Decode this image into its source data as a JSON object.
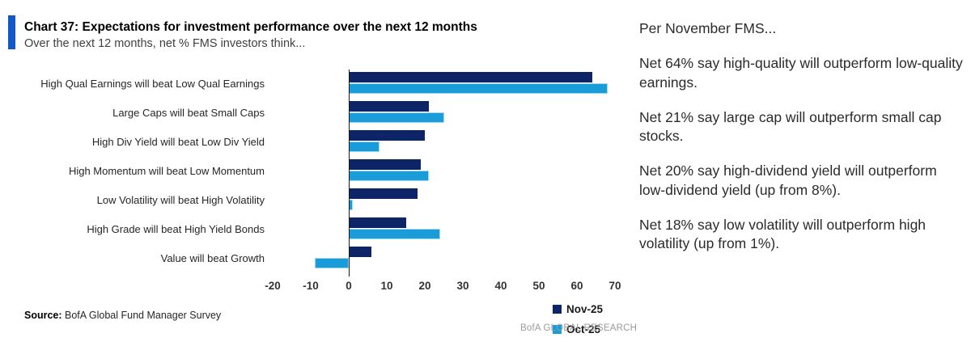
{
  "header": {
    "title": "Chart 37: Expectations for investment performance over the next 12 months",
    "subtitle": "Over the next 12 months, net % FMS investors think...",
    "accent_color": "#1159c8"
  },
  "chart_data": {
    "type": "bar",
    "orientation": "horizontal",
    "categories": [
      "High Qual Earnings will beat Low Qual Earnings",
      "Large Caps will beat Small Caps",
      "High Div Yield will beat Low Div Yield",
      "High Momentum will beat Low Momentum",
      "Low Volatility will beat High Volatility",
      "High Grade will beat High Yield Bonds",
      "Value will beat Growth"
    ],
    "series": [
      {
        "name": "Nov-25",
        "color": "#0d2566",
        "values": [
          64,
          21,
          20,
          19,
          18,
          15,
          6
        ]
      },
      {
        "name": "Oct-25",
        "color": "#1a9cd8",
        "values": [
          68,
          25,
          8,
          21,
          1,
          24,
          -9
        ]
      }
    ],
    "xlim": [
      -20,
      70
    ],
    "x_ticks": [
      -20,
      -10,
      0,
      10,
      20,
      30,
      40,
      50,
      60,
      70
    ],
    "grid": false,
    "legend_position": "right-middle",
    "title": "Chart 37: Expectations for investment performance over the next 12 months",
    "xlabel": "net % FMS investors",
    "ylabel": ""
  },
  "commentary": {
    "paragraphs": [
      "Per November FMS...",
      "Net 64% say high-quality will outperform low-quality earnings.",
      "Net 21% say large cap will outperform small cap stocks.",
      "Net 20% say high-dividend yield will outperform low-dividend yield (up from 8%).",
      "Net 18% say low volatility will outperform high volatility (up from 1%)."
    ]
  },
  "footer": {
    "source_label": "Source:",
    "source_text": " BofA Global Fund Manager Survey",
    "brand": "BofA GLOBAL RESEARCH"
  }
}
